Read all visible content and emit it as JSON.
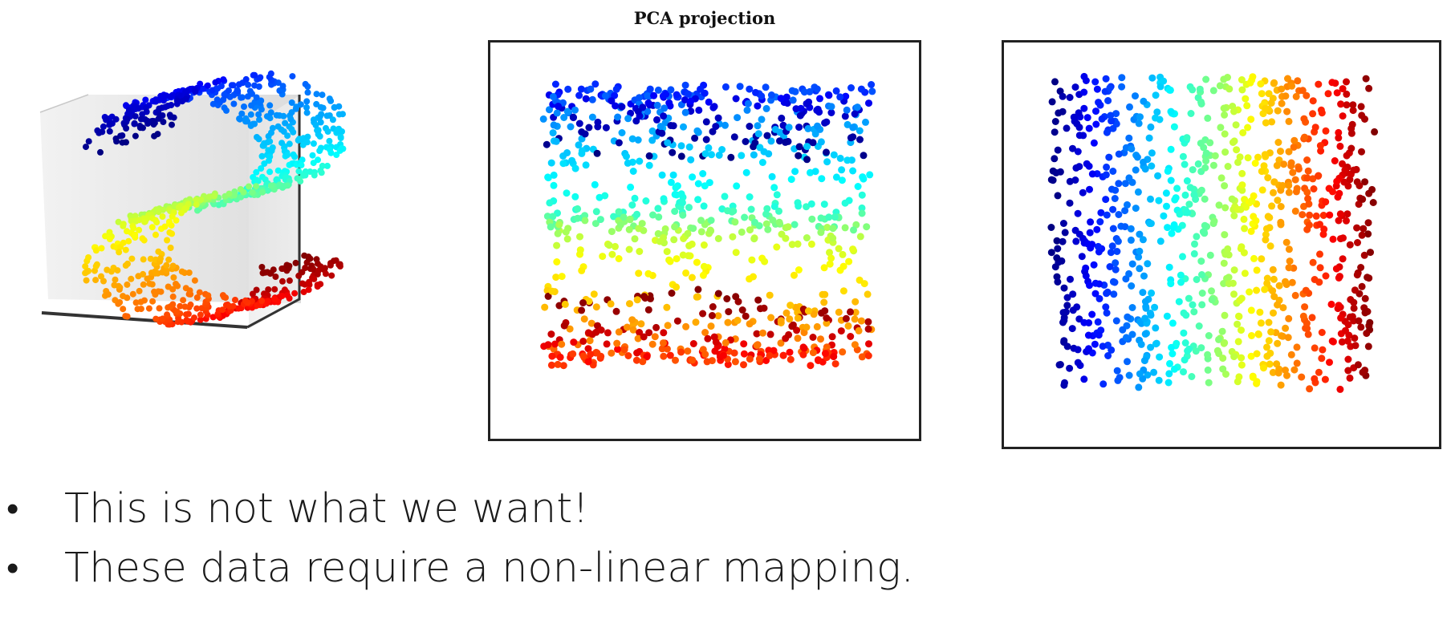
{
  "chart_data": [
    {
      "type": "scatter",
      "subtype": "3d-s-curve",
      "title": "",
      "colormap": "jet",
      "description_colors": [
        "#800000",
        "#ff0000",
        "#ff8c00",
        "#ffff00",
        "#32ff96",
        "#00e5ff",
        "#0064ff",
        "#1e00b4"
      ],
      "grid": false
    },
    {
      "type": "scatter",
      "title": "PCA projection",
      "colormap": "jet",
      "axes_visible": false,
      "grid": false
    },
    {
      "type": "scatter",
      "title": "",
      "colormap": "jet",
      "axes_visible": false,
      "grid": false
    }
  ],
  "bullets": [
    {
      "marker": "•",
      "text": "This is not what we want!"
    },
    {
      "marker": "•",
      "text": "These data require a non-linear mapping."
    }
  ]
}
